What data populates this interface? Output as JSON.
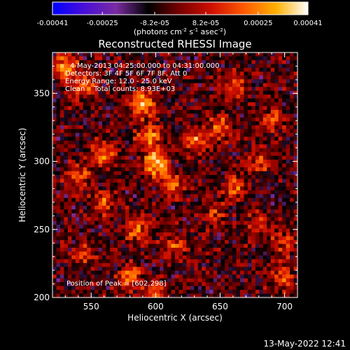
{
  "chart_data": {
    "type": "heatmap",
    "title": "Reconstructed RHESSI Image",
    "xlabel": "Heliocentric X (arcsec)",
    "ylabel": "Heliocentric Y (arcsec)",
    "xlim": [
      520,
      710
    ],
    "ylim": [
      200,
      380
    ],
    "x_ticks": [
      {
        "value": 550,
        "label": "550"
      },
      {
        "value": 600,
        "label": "600"
      },
      {
        "value": 650,
        "label": "650"
      },
      {
        "value": 700,
        "label": "700"
      }
    ],
    "y_ticks": [
      {
        "value": 200,
        "label": "200"
      },
      {
        "value": 250,
        "label": "250"
      },
      {
        "value": 300,
        "label": "300"
      },
      {
        "value": 350,
        "label": "350"
      }
    ],
    "colorbar": {
      "range": [
        -0.00041,
        0.00041
      ],
      "ticks": [
        {
          "value": -0.00041,
          "label": "-0.00041"
        },
        {
          "value": -0.00025,
          "label": "-0.00025"
        },
        {
          "value": -8.2e-05,
          "label": "-8.2e-05"
        },
        {
          "value": 8.2e-05,
          "label": "8.2e-05"
        },
        {
          "value": 0.00025,
          "label": "0.00025"
        },
        {
          "value": 0.00041,
          "label": "0.00041"
        }
      ],
      "unit_parts": [
        "(photons cm",
        "-2",
        " s",
        "-1",
        " asec",
        "-2",
        ")"
      ],
      "colors": [
        "#0000ff",
        "#4a0fd8",
        "#7a2ca0",
        "#000000",
        "#7a0000",
        "#d01000",
        "#ff5a00",
        "#ffb000",
        "#ffffff"
      ]
    },
    "annotations": [
      "4-May-2013 04:25:00.000 to 04:31:00.000",
      "Detectors: 3F 4F 5F 6F 7F 8F, Att 0",
      "Energy Range: 12.0 - 25.0 keV",
      "Clean    Total counts: 8.93E+03"
    ],
    "peak_label": "Position of Peak = [602,298]",
    "peak": {
      "x": 602,
      "y": 298
    },
    "hotspots": [
      {
        "x": 600,
        "y": 298,
        "amp": 1.0
      },
      {
        "x": 590,
        "y": 342,
        "amp": 0.85
      },
      {
        "x": 595,
        "y": 318,
        "amp": 0.75
      },
      {
        "x": 612,
        "y": 283,
        "amp": 0.6
      },
      {
        "x": 630,
        "y": 315,
        "amp": 0.65
      },
      {
        "x": 650,
        "y": 325,
        "amp": 0.6
      },
      {
        "x": 662,
        "y": 355,
        "amp": 0.55
      },
      {
        "x": 660,
        "y": 280,
        "amp": 0.55
      },
      {
        "x": 680,
        "y": 300,
        "amp": 0.5
      },
      {
        "x": 530,
        "y": 370,
        "amp": 0.75
      },
      {
        "x": 545,
        "y": 355,
        "amp": 0.65
      },
      {
        "x": 560,
        "y": 305,
        "amp": 0.6
      },
      {
        "x": 540,
        "y": 290,
        "amp": 0.55
      },
      {
        "x": 560,
        "y": 270,
        "amp": 0.5
      },
      {
        "x": 585,
        "y": 250,
        "amp": 0.55
      },
      {
        "x": 615,
        "y": 238,
        "amp": 0.5
      },
      {
        "x": 580,
        "y": 215,
        "amp": 0.6
      },
      {
        "x": 600,
        "y": 205,
        "amp": 0.5
      },
      {
        "x": 645,
        "y": 260,
        "amp": 0.4
      },
      {
        "x": 700,
        "y": 240,
        "amp": 0.45
      },
      {
        "x": 700,
        "y": 215,
        "amp": 0.5
      },
      {
        "x": 690,
        "y": 330,
        "amp": 0.45
      },
      {
        "x": 680,
        "y": 255,
        "amp": 0.4
      },
      {
        "x": 545,
        "y": 230,
        "amp": 0.4
      }
    ],
    "grid": false
  },
  "footer": {
    "timestamp": "13-May-2022 12:41"
  }
}
